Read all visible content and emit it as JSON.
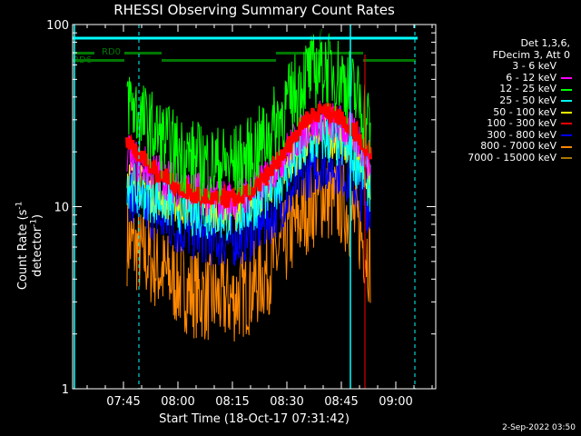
{
  "chart_data": {
    "type": "line",
    "title": "RHESSI Observing Summary Count Rates",
    "xlabel": "Start Time (18-Oct-17 07:31:42)",
    "ylabel": "Count Rate (s",
    "ylabel_sup1": "-1",
    "ylabel_mid": " detector",
    "ylabel_sup2": "-1",
    "ylabel_end": ")",
    "y_scale": "log",
    "xlim": [
      "07:31",
      "09:11"
    ],
    "ylim": [
      1,
      100
    ],
    "x_ticks": [
      "07:45",
      "08:00",
      "08:15",
      "08:30",
      "08:45",
      "09:00"
    ],
    "y_ticks": [
      "1",
      "10",
      "100"
    ],
    "legend_header": [
      "Det 1,3,6,",
      "FDecim 3, Att 0"
    ],
    "legend_position": "right",
    "timestamp": "2-Sep-2022 03:50",
    "flags": [
      {
        "label": "RD0",
        "color": "#007700",
        "segments": [
          [
            "07:35",
            "07:37"
          ]
        ]
      },
      {
        "label": "RD6",
        "color": "#007700",
        "segments": [
          [
            "07:31",
            "07:37"
          ],
          [
            "07:37",
            "07:41"
          ]
        ]
      }
    ],
    "series": [
      {
        "name": "3 - 6 keV",
        "color": "#000000",
        "x": [
          "07:45",
          "08:00",
          "08:15",
          "08:30",
          "08:45",
          "08:53"
        ],
        "values": [
          85,
          88,
          87,
          89,
          90,
          88
        ],
        "noise": 0.05
      },
      {
        "name": "6 - 12 keV",
        "color": "#ff00ff",
        "x": [
          "07:46",
          "07:50",
          "07:55",
          "08:00",
          "08:05",
          "08:10",
          "08:15",
          "08:20",
          "08:25",
          "08:30",
          "08:35",
          "08:40",
          "08:45",
          "08:50",
          "08:53"
        ],
        "values": [
          19,
          17,
          15,
          13,
          12,
          11,
          11,
          12,
          15,
          20,
          27,
          30,
          28,
          23,
          17
        ],
        "noise": 0.12
      },
      {
        "name": "12 - 25 keV",
        "color": "#00ff00",
        "x": [
          "07:46",
          "07:50",
          "07:55",
          "08:00",
          "08:05",
          "08:10",
          "08:15",
          "08:20",
          "08:25",
          "08:30",
          "08:35",
          "08:40",
          "08:45",
          "08:50",
          "08:53"
        ],
        "values": [
          40,
          30,
          24,
          20,
          18,
          17,
          17,
          19,
          25,
          36,
          52,
          60,
          52,
          38,
          28
        ],
        "noise": 0.22
      },
      {
        "name": "25 - 50 keV",
        "color": "#00ffff",
        "x": [
          "07:46",
          "07:50",
          "07:55",
          "08:00",
          "08:05",
          "08:10",
          "08:15",
          "08:20",
          "08:25",
          "08:30",
          "08:35",
          "08:40",
          "08:45",
          "08:50",
          "08:53"
        ],
        "values": [
          14,
          12,
          11,
          10,
          9.5,
          9,
          9,
          10,
          12,
          16,
          21,
          24,
          22,
          17,
          13
        ],
        "noise": 0.15
      },
      {
        "name": "50 - 100 keV",
        "color": "#ffff00",
        "x": [
          "07:46",
          "07:50",
          "07:55",
          "08:00",
          "08:05",
          "08:10",
          "08:15",
          "08:20",
          "08:25",
          "08:30",
          "08:35",
          "08:40",
          "08:45",
          "08:50",
          "08:53"
        ],
        "values": [
          15,
          13,
          11.5,
          10.5,
          10,
          9.5,
          9.5,
          10.5,
          13,
          17,
          22,
          25,
          23,
          18,
          14
        ],
        "noise": 0.12
      },
      {
        "name": "100 - 300 keV",
        "color": "#ff0000",
        "x": [
          "07:46",
          "07:50",
          "07:55",
          "08:00",
          "08:05",
          "08:10",
          "08:15",
          "08:20",
          "08:25",
          "08:30",
          "08:35",
          "08:40",
          "08:45",
          "08:50",
          "08:53"
        ],
        "values": [
          23,
          19,
          15,
          13,
          11.5,
          11,
          11,
          12,
          15,
          21,
          30,
          34,
          31,
          24,
          19
        ],
        "noise": 0.05
      },
      {
        "name": "300 - 800 keV",
        "color": "#0000ff",
        "x": [
          "07:46",
          "07:50",
          "07:55",
          "08:00",
          "08:05",
          "08:10",
          "08:15",
          "08:20",
          "08:25",
          "08:30",
          "08:35",
          "08:40",
          "08:45",
          "08:50",
          "08:53"
        ],
        "values": [
          12,
          10,
          8.5,
          7.5,
          7,
          6.5,
          6.5,
          7,
          8.5,
          11,
          15,
          17.5,
          16,
          12,
          9.5
        ],
        "noise": 0.15
      },
      {
        "name": "800 - 7000 keV",
        "color": "#ff8800",
        "x": [
          "07:46",
          "07:50",
          "07:55",
          "08:00",
          "08:05",
          "08:10",
          "08:15",
          "08:20",
          "08:25",
          "08:30",
          "08:35",
          "08:40",
          "08:45",
          "08:50",
          "08:53"
        ],
        "values": [
          6.5,
          5.5,
          4.5,
          3.8,
          3.3,
          3.1,
          3.1,
          3.5,
          4.5,
          6.5,
          9.5,
          11.5,
          10.5,
          7.5,
          5
        ],
        "noise": 0.25
      },
      {
        "name": "7000 - 15000 keV",
        "color": "#aa7700",
        "x": [],
        "values": [],
        "noise": 0
      }
    ]
  }
}
